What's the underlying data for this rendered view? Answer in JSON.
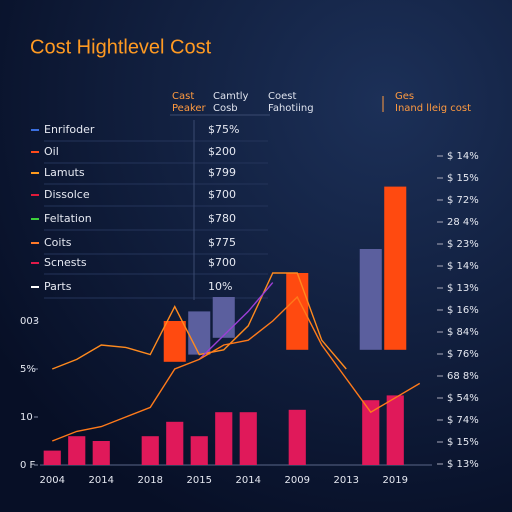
{
  "chart_data": {
    "type": "bar",
    "title": "Cost Hightlevel Cost",
    "headers": [
      [
        "Cast",
        "Peaker"
      ],
      [
        "Camtly",
        "Cosb"
      ],
      [
        "Coest",
        "Fahotiing"
      ],
      [
        "Ges",
        "Inand lleig cost"
      ]
    ],
    "legend": [
      {
        "name": "Enrifoder",
        "color": "#3b6fe0",
        "label": "$75%"
      },
      {
        "name": "Oil",
        "color": "#ff4a1a",
        "label": "$200"
      },
      {
        "name": "Lamuts",
        "color": "#ff9a1e",
        "label": "$799"
      },
      {
        "name": "Dissolce",
        "color": "#e0193a",
        "label": "$700"
      },
      {
        "name": "Feltation",
        "color": "#3ccf3a",
        "label": "$780"
      },
      {
        "name": "Coits",
        "color": "#ff7a2a",
        "label": "$775"
      },
      {
        "name": "Scnests",
        "color": "#e01a4a",
        "label": "$700"
      },
      {
        "name": "Parts",
        "color": "#ffffff",
        "label": "10%"
      }
    ],
    "categories": [
      "2004",
      null,
      "2014",
      null,
      "2018",
      null,
      "2015",
      null,
      "2014",
      null,
      "2009",
      null,
      "2013",
      null,
      "2019",
      null
    ],
    "ylim": [
      0,
      90
    ],
    "yticks": [
      {
        "value": 0,
        "label": "0 F"
      },
      10,
      {
        "value": 20,
        "label": "5%"
      },
      {
        "value": 30,
        "label": "003"
      }
    ],
    "y2_labels": [
      "$ 14%",
      "$ 15%",
      "$ 72%",
      "28 4%",
      "$ 23%",
      "$ 14%",
      "$ 13%",
      "$ 16%",
      "$ 84%",
      "$ 76%",
      "68 8%",
      "$ 54%",
      "$ 74%",
      "$ 15%",
      "$ 13%"
    ],
    "series": [
      {
        "color": "#e0195a",
        "values": [
          3,
          6,
          5,
          null,
          6,
          9,
          6,
          11,
          11,
          null,
          11.5,
          null,
          null,
          13.5,
          14.5,
          null
        ]
      }
    ],
    "ranges": [
      {
        "color": "#ff4a10",
        "low": [
          null,
          null,
          null,
          null,
          null,
          21.5,
          null,
          null,
          null,
          null,
          24,
          null,
          null,
          null,
          24,
          null
        ],
        "high": [
          null,
          null,
          null,
          null,
          null,
          30,
          null,
          null,
          null,
          null,
          40,
          null,
          null,
          null,
          58,
          null
        ]
      },
      {
        "color": "#5b5f9e",
        "low": [
          null,
          null,
          null,
          null,
          null,
          null,
          23,
          26.5,
          null,
          null,
          null,
          null,
          null,
          24,
          null,
          null
        ],
        "high": [
          null,
          null,
          null,
          null,
          null,
          null,
          32,
          35,
          null,
          null,
          null,
          null,
          null,
          45,
          null,
          null
        ]
      }
    ],
    "lines": [
      {
        "color": "#ff8a1e",
        "values": [
          20,
          22,
          25,
          24.5,
          23,
          33,
          23,
          24,
          29,
          40,
          40,
          26,
          20,
          null,
          null,
          null
        ]
      },
      {
        "color": "#9b3fd6",
        "values": [
          null,
          null,
          null,
          null,
          null,
          null,
          22,
          27,
          32,
          38,
          null,
          null,
          null,
          null,
          null,
          null
        ]
      },
      {
        "color": "#ff7a1a",
        "values": [
          5,
          7,
          8,
          10,
          12,
          20,
          22,
          25,
          26,
          30,
          35,
          25,
          18,
          11,
          14,
          17
        ]
      }
    ]
  }
}
